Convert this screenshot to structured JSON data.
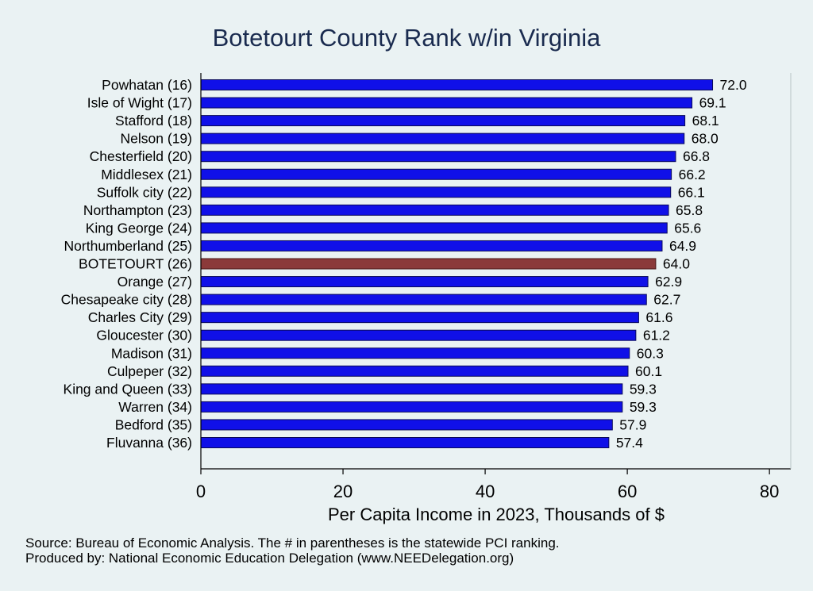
{
  "chart_data": {
    "type": "bar",
    "orientation": "horizontal",
    "title": "Botetourt County Rank w/in Virginia",
    "xlabel": "Per Capita Income in 2023, Thousands of $",
    "xlim": [
      0,
      83
    ],
    "xticks": [
      0,
      20,
      40,
      60,
      80
    ],
    "grid": false,
    "categories": [
      "Powhatan (16)",
      "Isle of Wight (17)",
      "Stafford (18)",
      "Nelson (19)",
      "Chesterfield (20)",
      "Middlesex (21)",
      "Suffolk city (22)",
      "Northampton (23)",
      "King George (24)",
      "Northumberland (25)",
      "BOTETOURT (26)",
      "Orange (27)",
      "Chesapeake city (28)",
      "Charles City (29)",
      "Gloucester (30)",
      "Madison (31)",
      "Culpeper (32)",
      "King and Queen (33)",
      "Warren (34)",
      "Bedford (35)",
      "Fluvanna (36)"
    ],
    "values": [
      72.0,
      69.1,
      68.1,
      68.0,
      66.8,
      66.2,
      66.1,
      65.8,
      65.6,
      64.9,
      64.0,
      62.9,
      62.7,
      61.6,
      61.2,
      60.3,
      60.1,
      59.3,
      59.3,
      57.9,
      57.4
    ],
    "value_labels": [
      "72.0",
      "69.1",
      "68.1",
      "68.0",
      "66.8",
      "66.2",
      "66.1",
      "65.8",
      "65.6",
      "64.9",
      "64.0",
      "62.9",
      "62.7",
      "61.6",
      "61.2",
      "60.3",
      "60.1",
      "59.3",
      "59.3",
      "57.9",
      "57.4"
    ],
    "highlight_index": 10,
    "colors": {
      "bar": "#1010e8",
      "bar_edge": "#0a0a5a",
      "highlight": "#8b3a3a",
      "background": "#eaf2f3",
      "title": "#1a2b4f"
    }
  },
  "notes": {
    "source": "Source: Bureau of Economic Analysis. The # in parentheses is the statewide PCI ranking.",
    "producer": "Produced by: National Economic Education Delegation (www.NEEDelegation.org)"
  }
}
